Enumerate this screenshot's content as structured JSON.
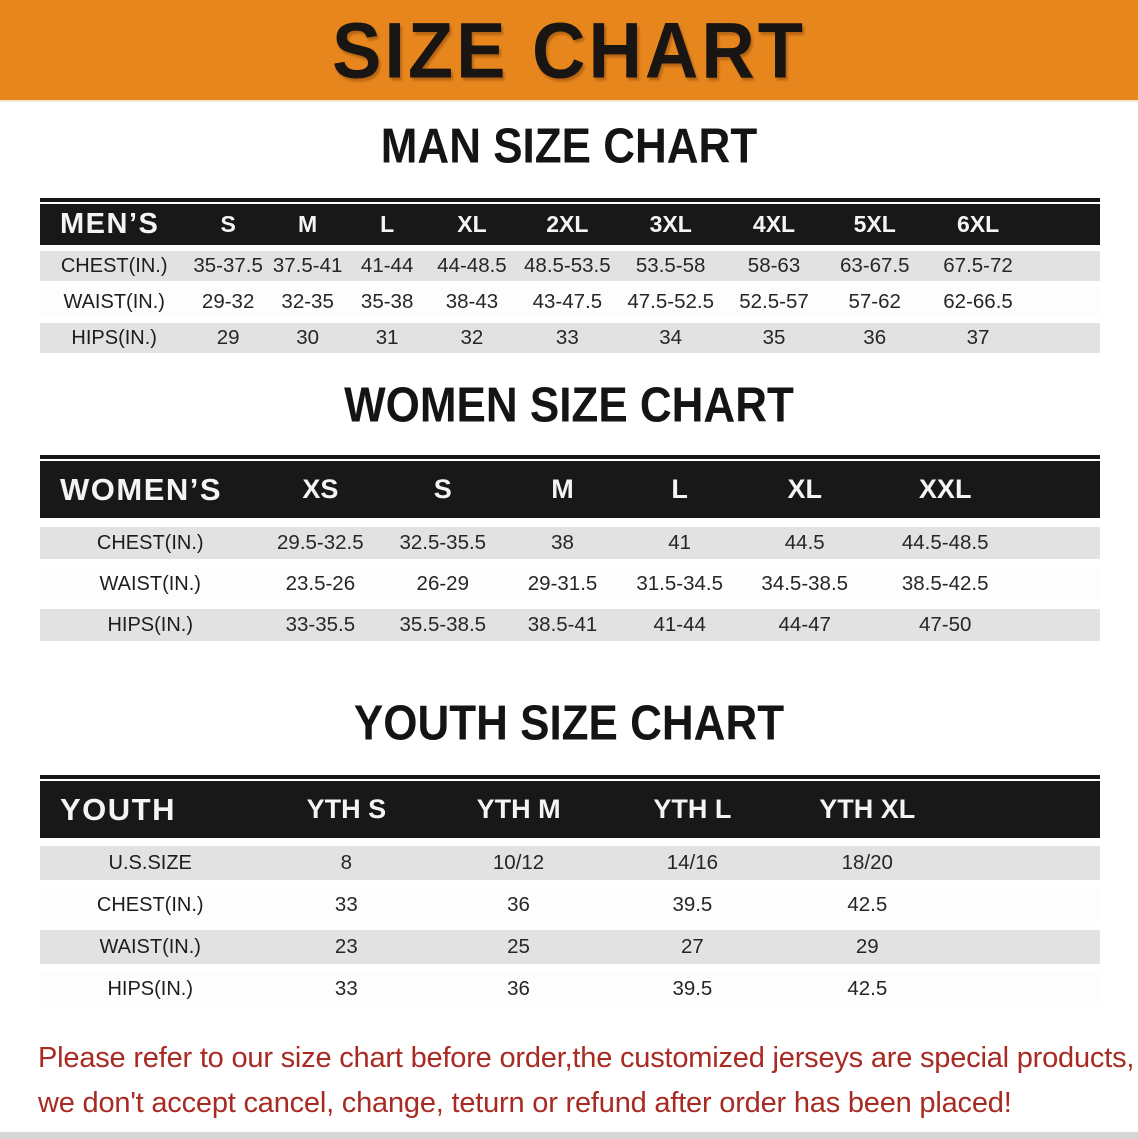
{
  "banner": {
    "title": "SIZE CHART"
  },
  "sections": [
    {
      "heading": "MAN SIZE CHART",
      "table": {
        "header": [
          "MEN’S",
          "S",
          "M",
          "L",
          "XL",
          "2XL",
          "3XL",
          "4XL",
          "5XL",
          "6XL"
        ],
        "rows": [
          [
            "CHEST(IN.)",
            "35-37.5",
            "37.5-41",
            "41-44",
            "44-48.5",
            "48.5-53.5",
            "53.5-58",
            "58-63",
            "63-67.5",
            "67.5-72"
          ],
          [
            "WAIST(IN.)",
            "29-32",
            "32-35",
            "35-38",
            "38-43",
            "43-47.5",
            "47.5-52.5",
            "52.5-57",
            "57-62",
            "62-66.5"
          ],
          [
            "HIPS(IN.)",
            "29",
            "30",
            "31",
            "32",
            "33",
            "34",
            "35",
            "36",
            "37"
          ]
        ]
      }
    },
    {
      "heading": "WOMEN SIZE CHART",
      "table": {
        "header": [
          "WOMEN’S",
          "XS",
          "S",
          "M",
          "L",
          "XL",
          "XXL"
        ],
        "rows": [
          [
            "CHEST(IN.)",
            "29.5-32.5",
            "32.5-35.5",
            "38",
            "41",
            "44.5",
            "44.5-48.5"
          ],
          [
            "WAIST(IN.)",
            "23.5-26",
            "26-29",
            "29-31.5",
            "31.5-34.5",
            "34.5-38.5",
            "38.5-42.5"
          ],
          [
            "HIPS(IN.)",
            "33-35.5",
            "35.5-38.5",
            "38.5-41",
            "41-44",
            "44-47",
            "47-50"
          ]
        ]
      }
    },
    {
      "heading": "YOUTH SIZE CHART",
      "table": {
        "header": [
          "YOUTH",
          "YTH S",
          "YTH M",
          "YTH L",
          "YTH XL"
        ],
        "rows": [
          [
            "U.S.SIZE",
            "8",
            "10/12",
            "14/16",
            "18/20"
          ],
          [
            "CHEST(IN.)",
            "33",
            "36",
            "39.5",
            "42.5"
          ],
          [
            "WAIST(IN.)",
            "23",
            "25",
            "27",
            "29"
          ],
          [
            "HIPS(IN.)",
            "33",
            "36",
            "39.5",
            "42.5"
          ]
        ]
      }
    }
  ],
  "footer": {
    "line1": "Please refer to our size chart before order,the customized jerseys are special products,",
    "line2": "we don't accept cancel, change, teturn or refund after order has been placed!"
  },
  "colors": {
    "banner_bg": "#E8861E",
    "table_header_bg": "#181818",
    "row_stripe": "#E2E2E2",
    "footer_text": "#A82A22"
  }
}
